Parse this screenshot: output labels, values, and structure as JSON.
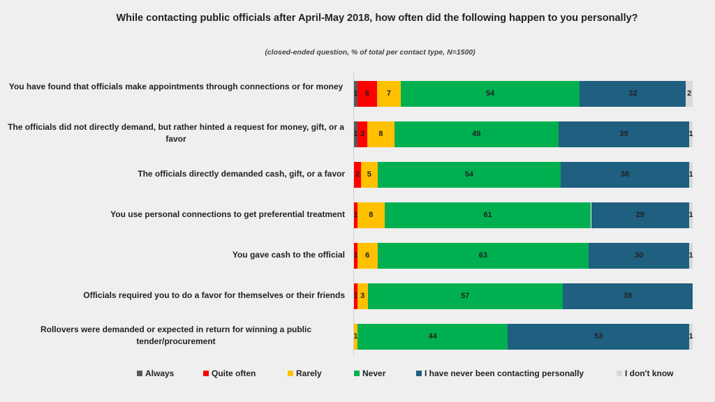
{
  "chart_data": {
    "type": "bar",
    "orientation": "horizontal-stacked",
    "title": "While contacting public officials after April-May 2018, how often did the following happen to you personally?",
    "subtitle": "(closed-ended question, %  of total per contact type, N=1500)",
    "legend_position": "bottom",
    "series": [
      {
        "name": "Always",
        "color": "#595959"
      },
      {
        "name": "Quite often",
        "color": "#ff0000"
      },
      {
        "name": "Rarely",
        "color": "#ffc000"
      },
      {
        "name": "Never",
        "color": "#00b050"
      },
      {
        "name": "I have never been contacting personally",
        "color": "#1f5f7f"
      },
      {
        "name": "I don't know",
        "color": "#d9d9d9"
      }
    ],
    "rows": [
      {
        "label": "You have found that officials make appointments through connections or for money",
        "values": [
          1,
          6,
          7,
          54,
          32,
          2
        ],
        "labels": [
          "1",
          "6",
          "7",
          "54",
          "32",
          "2"
        ]
      },
      {
        "label": "The officials did not directly demand, but rather hinted a request for money, gift, or a favor",
        "values": [
          1,
          3,
          8,
          49,
          39,
          1
        ],
        "labels": [
          "1",
          "3",
          "8",
          "49",
          "39",
          "1"
        ]
      },
      {
        "label": "The officials directly demanded cash, gift, or a favor",
        "values": [
          0,
          2,
          5,
          54,
          38,
          1
        ],
        "labels": [
          "",
          "2",
          "5",
          "54",
          "38",
          "1"
        ]
      },
      {
        "label": "You use personal connections to get preferential treatment",
        "values": [
          0,
          1,
          8,
          61,
          29,
          1
        ],
        "labels": [
          "",
          "1",
          "8",
          "61",
          "29",
          "1"
        ]
      },
      {
        "label": "You gave cash to the official",
        "values": [
          0,
          1,
          6,
          63,
          30,
          1
        ],
        "labels": [
          "",
          "1",
          "6",
          "63",
          "30",
          "1"
        ]
      },
      {
        "label": "Officials required you to do a favor for themselves or their friends",
        "values": [
          0,
          1,
          3,
          57,
          38,
          0
        ],
        "labels": [
          "",
          "1",
          "3",
          "57",
          "38",
          ""
        ]
      },
      {
        "label": "Rollovers were demanded or expected in return for winning a public tender/procurement",
        "values": [
          0,
          0,
          1,
          44,
          53,
          1
        ],
        "labels": [
          "",
          "",
          "1",
          "44",
          "53",
          "1"
        ]
      }
    ]
  }
}
